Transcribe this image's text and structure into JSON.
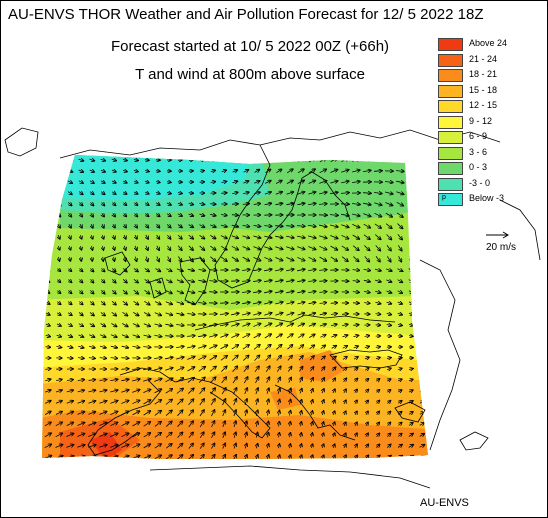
{
  "header": {
    "title": "AU-ENVS THOR Weather and Air Pollution Forecast for 12/ 5 2022  18Z",
    "subtitle_forecast": "Forecast started at 10/ 5 2022  00Z (+66h)",
    "subtitle_field": "T and wind at 800m above surface"
  },
  "legend": {
    "items": [
      {
        "label": "Above   24",
        "color": "#f03a12"
      },
      {
        "label": "21 - 24",
        "color": "#f56416"
      },
      {
        "label": "18 - 21",
        "color": "#fa8c1c"
      },
      {
        "label": "15 - 18",
        "color": "#fcb422"
      },
      {
        "label": "12 - 15",
        "color": "#ffd82a"
      },
      {
        "label": "9 - 12",
        "color": "#fff53a"
      },
      {
        "label": "6 - 9",
        "color": "#d8f03c"
      },
      {
        "label": "3 - 6",
        "color": "#a6e63f"
      },
      {
        "label": "0 - 3",
        "color": "#6ed86b"
      },
      {
        "label": "-3 - 0",
        "color": "#4ee0b0"
      },
      {
        "label": "Below   -3",
        "color": "#36e8d8",
        "marker": "p"
      }
    ]
  },
  "wind_reference": {
    "label": "20 m/s"
  },
  "footer": {
    "credit": "AU-ENVS"
  },
  "map": {
    "field": "temperature",
    "colors": {
      "land_outline": "#000000",
      "wind_arrow": "#000000"
    }
  }
}
